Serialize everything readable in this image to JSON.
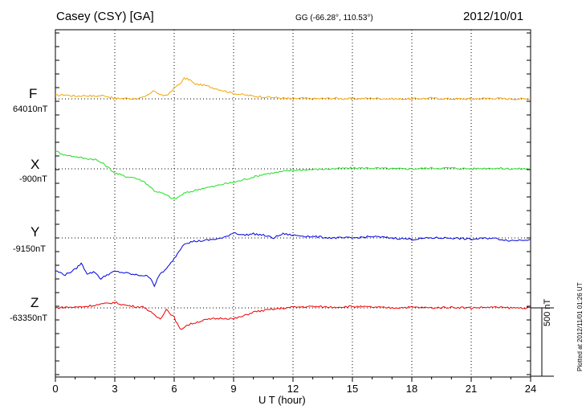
{
  "header": {
    "station": "Casey (CSY)  [GA]",
    "coords": "GG (-66.28°, 110.53°)",
    "date": "2012/10/01"
  },
  "plotted_note": "Plotted at 2012/11/01 01:26 UT",
  "scale_label": "500 nT",
  "chart_data": {
    "type": "line",
    "title": "",
    "xlabel": "U T (hour)",
    "ylabel": "",
    "xlim": [
      0,
      24
    ],
    "xticks": [
      "0",
      "3",
      "6",
      "9",
      "12",
      "15",
      "18",
      "21",
      "24"
    ],
    "grid": true,
    "scale_bar_nT": 500,
    "series": [
      {
        "name": "F",
        "baseline_label": "64010nT",
        "color": "#f5a500",
        "x": [
          0,
          0.5,
          1,
          1.5,
          2,
          2.5,
          3,
          3.5,
          4,
          4.5,
          5,
          5.3,
          5.6,
          6,
          6.3,
          6.5,
          6.8,
          7,
          7.5,
          8,
          8.5,
          9,
          9.5,
          10,
          10.5,
          11,
          11.5,
          12,
          12.5,
          13,
          14,
          15,
          16,
          17,
          18,
          19,
          20,
          21,
          22,
          23,
          24
        ],
        "values": [
          25,
          30,
          20,
          25,
          20,
          25,
          0,
          5,
          0,
          10,
          60,
          30,
          20,
          80,
          110,
          150,
          140,
          110,
          100,
          80,
          60,
          40,
          30,
          20,
          15,
          10,
          5,
          0,
          5,
          0,
          5,
          0,
          5,
          0,
          0,
          5,
          0,
          0,
          5,
          0,
          0
        ]
      },
      {
        "name": "X",
        "baseline_label": "-900nT",
        "color": "#22dd22",
        "x": [
          0,
          0.5,
          1,
          1.5,
          2,
          2.5,
          3,
          3.5,
          4,
          4.5,
          5,
          5.5,
          6,
          6.5,
          7,
          7.5,
          8,
          8.5,
          9,
          9.5,
          10,
          10.5,
          11,
          11.5,
          12,
          13,
          14,
          15,
          16,
          17,
          18,
          19,
          20,
          21,
          22,
          23,
          24
        ],
        "values": [
          130,
          100,
          90,
          75,
          70,
          30,
          -30,
          -55,
          -65,
          -95,
          -160,
          -185,
          -225,
          -180,
          -160,
          -140,
          -130,
          -110,
          -100,
          -80,
          -60,
          -40,
          -30,
          -20,
          -10,
          -5,
          0,
          5,
          5,
          0,
          0,
          5,
          5,
          0,
          5,
          0,
          0
        ]
      },
      {
        "name": "Y",
        "baseline_label": "-9150nT",
        "color": "#0000dd",
        "x": [
          0,
          0.5,
          1,
          1.3,
          1.6,
          2,
          2.3,
          2.6,
          3,
          3.5,
          4,
          4.5,
          4.8,
          5,
          5.3,
          5.6,
          6,
          6.5,
          7,
          7.5,
          8,
          8.5,
          9,
          9.5,
          10,
          10.5,
          11,
          11.5,
          12,
          13,
          14,
          15,
          16,
          17,
          18,
          19,
          20,
          21,
          22,
          23,
          24
        ],
        "values": [
          -240,
          -270,
          -230,
          -185,
          -260,
          -250,
          -300,
          -270,
          -245,
          -255,
          -270,
          -275,
          -290,
          -350,
          -260,
          -230,
          -150,
          -40,
          -25,
          -20,
          -10,
          0,
          40,
          20,
          30,
          20,
          0,
          30,
          20,
          10,
          0,
          0,
          10,
          0,
          -10,
          0,
          0,
          -10,
          0,
          -20,
          -10
        ]
      },
      {
        "name": "Z",
        "baseline_label": "-63350nT",
        "color": "#ee0000",
        "x": [
          0,
          0.5,
          1,
          1.5,
          2,
          2.5,
          3,
          3.5,
          4,
          4.5,
          5,
          5.3,
          5.6,
          6,
          6.3,
          6.6,
          7,
          7.5,
          8,
          8.5,
          9,
          9.5,
          10,
          10.5,
          11,
          12,
          13,
          14,
          15,
          16,
          17,
          18,
          19,
          20,
          21,
          22,
          23,
          24
        ],
        "values": [
          0,
          5,
          5,
          10,
          20,
          30,
          40,
          20,
          10,
          5,
          -55,
          -80,
          -10,
          -70,
          -160,
          -130,
          -110,
          -90,
          -80,
          -75,
          -80,
          -60,
          -30,
          -20,
          -10,
          5,
          10,
          5,
          10,
          5,
          0,
          5,
          0,
          5,
          0,
          5,
          0,
          0
        ]
      }
    ]
  }
}
